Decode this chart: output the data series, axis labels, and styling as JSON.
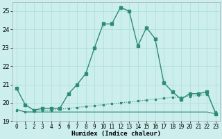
{
  "xlabel": "Humidex (Indice chaleur)",
  "x": [
    0,
    1,
    2,
    3,
    4,
    5,
    6,
    7,
    8,
    9,
    10,
    11,
    12,
    13,
    14,
    15,
    16,
    17,
    18,
    19,
    20,
    21,
    22,
    23
  ],
  "line_main": [
    20.8,
    19.9,
    19.6,
    19.7,
    19.7,
    19.7,
    20.5,
    21.0,
    21.6,
    23.0,
    24.3,
    24.3,
    25.2,
    25.0,
    23.1,
    24.1,
    23.5,
    21.1,
    20.6,
    20.2,
    20.5,
    20.5,
    20.6,
    19.4
  ],
  "line_dotted": [
    19.6,
    19.5,
    19.55,
    19.6,
    19.6,
    19.65,
    19.7,
    19.75,
    19.8,
    19.85,
    19.9,
    19.95,
    20.0,
    20.05,
    20.1,
    20.15,
    20.2,
    20.25,
    20.3,
    20.3,
    20.35,
    20.4,
    20.45,
    19.5
  ],
  "line_flat": [
    19.65,
    19.5,
    19.5,
    19.5,
    19.5,
    19.5,
    19.5,
    19.5,
    19.5,
    19.5,
    19.5,
    19.5,
    19.5,
    19.5,
    19.5,
    19.5,
    19.5,
    19.5,
    19.5,
    19.5,
    19.5,
    19.5,
    19.5,
    19.4
  ],
  "color": "#2e8b77",
  "bg_color": "#cceeed",
  "grid_color": "#aaddda",
  "ylim_min": 19.0,
  "ylim_max": 25.5,
  "yticks": [
    19,
    20,
    21,
    22,
    23,
    24,
    25
  ]
}
